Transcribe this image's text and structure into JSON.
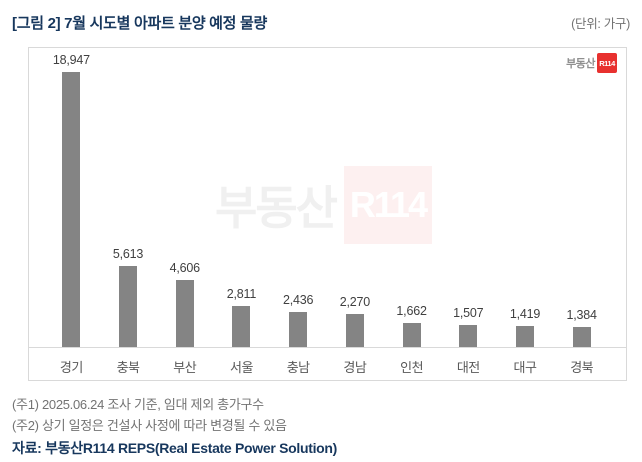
{
  "header": {
    "title": "[그림 2] 7월 시도별 아파트 분양 예정 물량",
    "unit_label": "(단위: 가구)"
  },
  "brand": {
    "prefix": "부동산",
    "box_text": "R114",
    "red": "#e8312f"
  },
  "watermark": {
    "prefix": "부동산",
    "box_text": "R114"
  },
  "chart_data": {
    "type": "bar",
    "title": "7월 시도별 아파트 분양 예정 물량",
    "unit": "가구",
    "categories": [
      "경기",
      "충북",
      "부산",
      "서울",
      "충남",
      "경남",
      "인천",
      "대전",
      "대구",
      "경북"
    ],
    "values": [
      18947,
      5613,
      4606,
      2811,
      2436,
      2270,
      1662,
      1507,
      1419,
      1384
    ],
    "bar_color": "#848484",
    "value_label_color": "#404040",
    "xlabel": "",
    "ylabel": "",
    "ylim": [
      0,
      20000
    ],
    "grid": false,
    "legend": false,
    "value_labels": true
  },
  "notes": [
    "(주1) 2025.06.24 조사 기준, 임대 제외 총가구수",
    "(주2) 상기 일정은 건설사 사정에 따라 변경될 수 있음"
  ],
  "source": "자료: 부동산R114 REPS(Real Estate Power Solution)"
}
